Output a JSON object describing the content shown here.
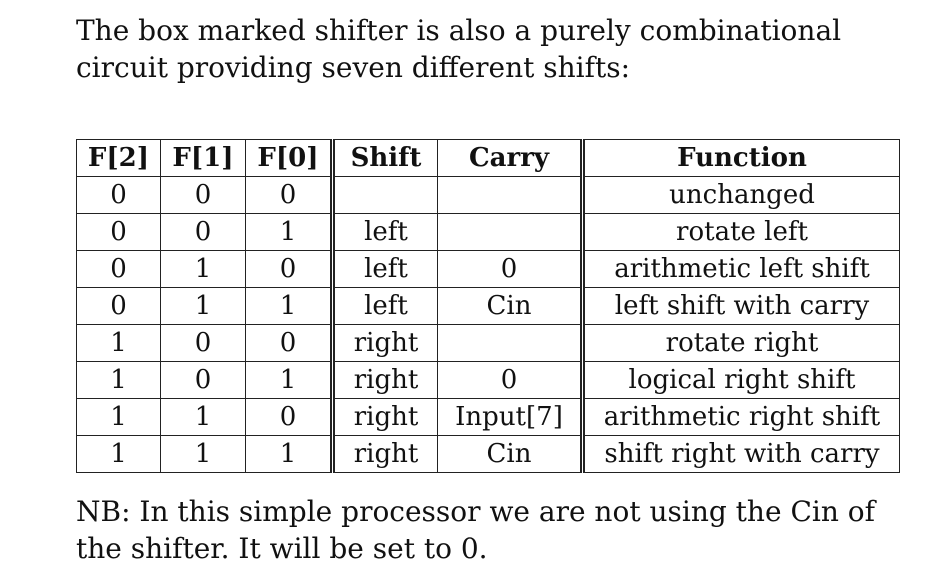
{
  "intro": {
    "line1": "The box marked shifter is also a purely combinational",
    "line2": "circuit providing seven different shifts:"
  },
  "table": {
    "headers": [
      "F[2]",
      "F[1]",
      "F[0]",
      "Shift",
      "Carry",
      "Function"
    ],
    "rows": [
      [
        "0",
        "0",
        "0",
        "",
        "",
        "unchanged"
      ],
      [
        "0",
        "0",
        "1",
        "left",
        "",
        "rotate left"
      ],
      [
        "0",
        "1",
        "0",
        "left",
        "0",
        "arithmetic left shift"
      ],
      [
        "0",
        "1",
        "1",
        "left",
        "Cin",
        "left shift with carry"
      ],
      [
        "1",
        "0",
        "0",
        "right",
        "",
        "rotate right"
      ],
      [
        "1",
        "0",
        "1",
        "right",
        "0",
        "logical right shift"
      ],
      [
        "1",
        "1",
        "0",
        "right",
        "Input[7]",
        "arithmetic right shift"
      ],
      [
        "1",
        "1",
        "1",
        "right",
        "Cin",
        "shift right with carry"
      ]
    ]
  },
  "note": {
    "line1": "NB: In this simple processor we are not using the Cin of",
    "line2": "the shifter. It will be set to 0."
  }
}
